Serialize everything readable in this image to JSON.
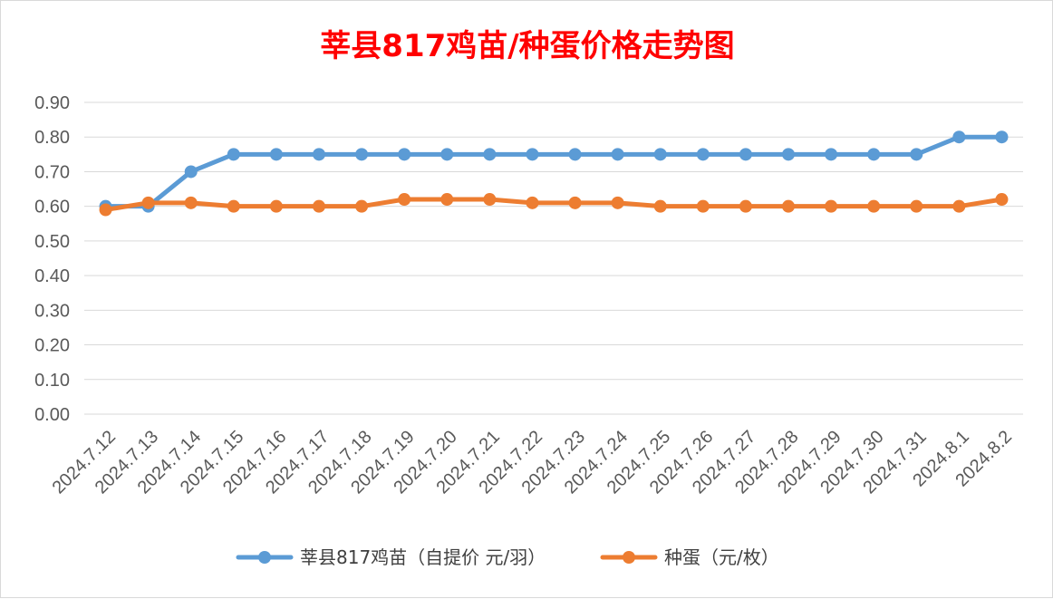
{
  "chart_data": {
    "type": "line",
    "title": "莘县817鸡苗/种蛋价格走势图",
    "xlabel": "",
    "ylabel": "",
    "ylim": [
      0,
      0.9
    ],
    "yticks": [
      "0.00",
      "0.10",
      "0.20",
      "0.30",
      "0.40",
      "0.50",
      "0.60",
      "0.70",
      "0.80",
      "0.90"
    ],
    "categories": [
      "2024.7.12",
      "2024.7.13",
      "2024.7.14",
      "2024.7.15",
      "2024.7.16",
      "2024.7.17",
      "2024.7.18",
      "2024.7.19",
      "2024.7.20",
      "2024.7.21",
      "2024.7.22",
      "2024.7.23",
      "2024.7.24",
      "2024.7.25",
      "2024.7.26",
      "2024.7.27",
      "2024.7.28",
      "2024.7.29",
      "2024.7.30",
      "2024.7.31",
      "2024.8.1",
      "2024.8.2"
    ],
    "series": [
      {
        "name": "莘县817鸡苗（自提价 元/羽）",
        "color": "#5b9bd5",
        "values": [
          0.6,
          0.6,
          0.7,
          0.75,
          0.75,
          0.75,
          0.75,
          0.75,
          0.75,
          0.75,
          0.75,
          0.75,
          0.75,
          0.75,
          0.75,
          0.75,
          0.75,
          0.75,
          0.75,
          0.75,
          0.8,
          0.8
        ]
      },
      {
        "name": "种蛋（元/枚）",
        "color": "#ed7d31",
        "values": [
          0.59,
          0.61,
          0.61,
          0.6,
          0.6,
          0.6,
          0.6,
          0.62,
          0.62,
          0.62,
          0.61,
          0.61,
          0.61,
          0.6,
          0.6,
          0.6,
          0.6,
          0.6,
          0.6,
          0.6,
          0.6,
          0.62
        ]
      }
    ],
    "grid": true,
    "legend": "bottom"
  }
}
